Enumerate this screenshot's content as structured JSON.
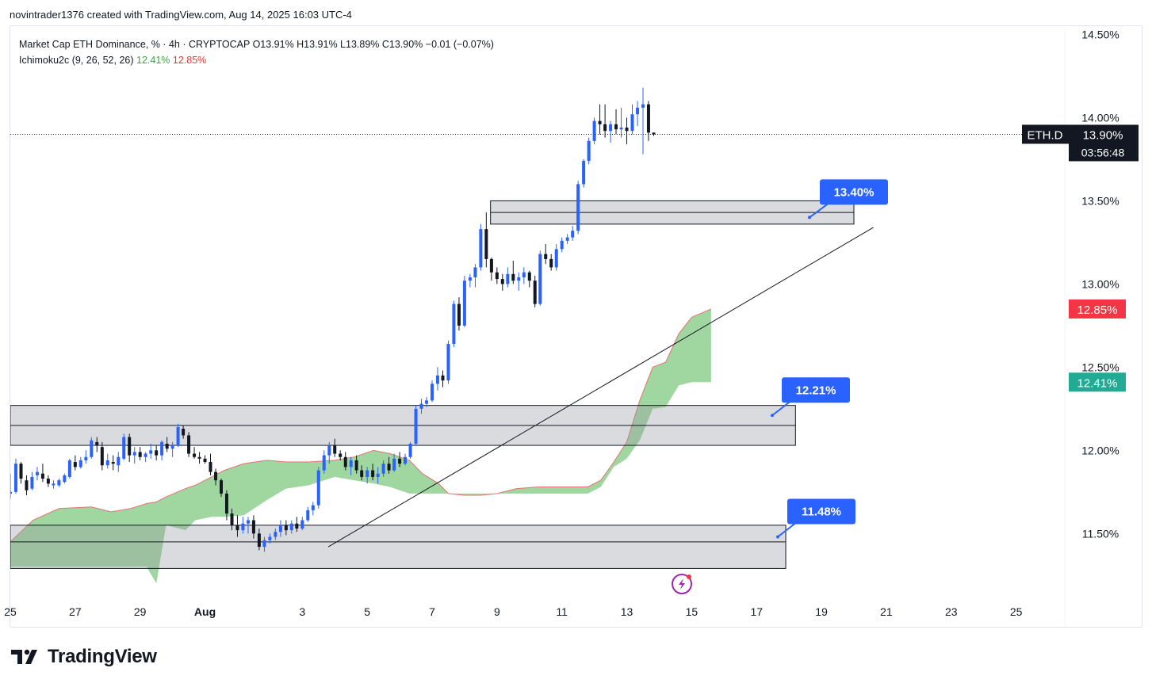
{
  "caption": "novintrader1376 created with TradingView.com, Aug 14, 2025 16:03 UTC-4",
  "legend": {
    "main": "Market Cap ETH Dominance, % · 4h · CRYPTOCAP",
    "ohlc": "O13.91% H13.91% L13.89% C13.90% −0.01 (−0.07%)",
    "indicator": "Ichimoku2c (9, 26, 52, 26)",
    "ind_val1": "12.41%",
    "ind_val2": "12.85%"
  },
  "brand": "TradingView",
  "colors": {
    "up": "#2962ff",
    "down": "#131722",
    "cloud": "#8fcf8f",
    "cloud_edge": "#e57373",
    "callout": "#2962ff",
    "label_red": "#f23645",
    "label_green": "#22ab94"
  },
  "chart_data": {
    "type": "candlestick",
    "symbol": "ETH.D",
    "interval": "4h",
    "ylim": [
      11.13,
      14.55
    ],
    "y_ticks": [
      "14.50%",
      "14.00%",
      "13.50%",
      "13.00%",
      "12.50%",
      "12.00%",
      "11.50%"
    ],
    "y_tick_values": [
      14.5,
      14.0,
      13.5,
      13.0,
      12.5,
      12.0,
      11.5
    ],
    "x_ticks": [
      "25",
      "27",
      "29",
      "Aug",
      "3",
      "5",
      "7",
      "9",
      "11",
      "13",
      "15",
      "17",
      "19",
      "21",
      "23",
      "25"
    ],
    "x_tick_days": [
      -7,
      -5,
      -3,
      -1,
      2,
      4,
      6,
      8,
      10,
      12,
      14,
      16,
      18,
      20,
      22,
      24
    ],
    "x_range_days": [
      -7,
      25.5
    ],
    "last_price": {
      "symbol": "ETH.D",
      "value": "13.90%",
      "countdown": "03:56:48",
      "price": 13.9
    },
    "ichimoku_labels": [
      {
        "text": "12.85%",
        "price": 12.85,
        "color": "red"
      },
      {
        "text": "12.41%",
        "price": 12.41,
        "color": "green"
      }
    ],
    "callouts": [
      {
        "text": "13.40%",
        "price": 13.4
      },
      {
        "text": "12.21%",
        "price": 12.21
      },
      {
        "text": "11.48%",
        "price": 11.48
      }
    ],
    "zones": [
      {
        "from_day": 7.8,
        "to_day": 19.0,
        "low": 13.36,
        "high": 13.5,
        "mid": 13.43
      },
      {
        "from_day": -7.0,
        "to_day": 17.2,
        "low": 12.03,
        "high": 12.27,
        "mid": 12.15
      },
      {
        "from_day": -7.0,
        "to_day": 16.9,
        "low": 11.29,
        "high": 11.55,
        "mid": 11.45
      }
    ],
    "trendline": {
      "from": [
        2.8,
        11.42
      ],
      "to": [
        19.6,
        13.34
      ]
    },
    "cloud": [
      [
        -7.0,
        11.45,
        11.3
      ],
      [
        -6.3,
        11.58,
        11.3
      ],
      [
        -5.5,
        11.65,
        11.3
      ],
      [
        -4.5,
        11.66,
        11.3
      ],
      [
        -3.9,
        11.63,
        11.3
      ],
      [
        -3.3,
        11.65,
        11.3
      ],
      [
        -2.8,
        11.68,
        11.3
      ],
      [
        -2.5,
        11.69,
        11.2
      ],
      [
        -2.2,
        11.72,
        11.55
      ],
      [
        -1.6,
        11.77,
        11.52
      ],
      [
        -1.3,
        11.79,
        11.58
      ],
      [
        -0.8,
        11.84,
        11.6
      ],
      [
        -0.4,
        11.88,
        11.6
      ],
      [
        0.2,
        11.92,
        11.61
      ],
      [
        0.9,
        11.94,
        11.7
      ],
      [
        1.5,
        11.93,
        11.77
      ],
      [
        2.2,
        11.93,
        11.79
      ],
      [
        3.0,
        11.94,
        11.84
      ],
      [
        3.6,
        11.96,
        11.82
      ],
      [
        4.2,
        12.0,
        11.8
      ],
      [
        4.7,
        11.98,
        11.78
      ],
      [
        5.3,
        11.94,
        11.74
      ],
      [
        5.7,
        11.86,
        11.74
      ],
      [
        6.2,
        11.8,
        11.74
      ],
      [
        6.5,
        11.74,
        11.74
      ],
      [
        7.0,
        11.73,
        11.74
      ],
      [
        7.5,
        11.73,
        11.74
      ],
      [
        8.0,
        11.74,
        11.74
      ],
      [
        8.6,
        11.77,
        11.74
      ],
      [
        9.3,
        11.78,
        11.74
      ],
      [
        10.2,
        11.78,
        11.74
      ],
      [
        10.8,
        11.78,
        11.74
      ],
      [
        11.2,
        11.82,
        11.78
      ],
      [
        11.6,
        11.93,
        11.9
      ],
      [
        12.0,
        12.05,
        11.95
      ],
      [
        12.4,
        12.3,
        12.06
      ],
      [
        12.8,
        12.5,
        12.25
      ],
      [
        13.2,
        12.53,
        12.26
      ],
      [
        13.6,
        12.7,
        12.39
      ],
      [
        14.0,
        12.8,
        12.41
      ],
      [
        14.6,
        12.85,
        12.41
      ]
    ],
    "candles": [
      [
        -7.0,
        11.74,
        11.86,
        11.71,
        11.75
      ],
      [
        -6.83,
        11.75,
        11.95,
        11.74,
        11.92
      ],
      [
        -6.67,
        11.92,
        11.93,
        11.8,
        11.83
      ],
      [
        -6.5,
        11.82,
        11.85,
        11.73,
        11.76
      ],
      [
        -6.33,
        11.77,
        11.87,
        11.76,
        11.84
      ],
      [
        -6.17,
        11.85,
        11.9,
        11.82,
        11.87
      ],
      [
        -6.0,
        11.86,
        11.92,
        11.81,
        11.83
      ],
      [
        -5.83,
        11.83,
        11.85,
        11.78,
        11.8
      ],
      [
        -5.67,
        11.79,
        11.82,
        11.77,
        11.8
      ],
      [
        -5.5,
        11.79,
        11.83,
        11.78,
        11.82
      ],
      [
        -5.33,
        11.81,
        11.86,
        11.8,
        11.85
      ],
      [
        -5.17,
        11.84,
        11.95,
        11.83,
        11.94
      ],
      [
        -5.0,
        11.93,
        11.97,
        11.88,
        11.9
      ],
      [
        -4.83,
        11.9,
        11.96,
        11.89,
        11.94
      ],
      [
        -4.67,
        11.94,
        12.0,
        11.92,
        11.96
      ],
      [
        -4.5,
        11.96,
        12.08,
        11.95,
        12.06
      ],
      [
        -4.33,
        12.05,
        12.08,
        11.99,
        12.03
      ],
      [
        -4.17,
        12.02,
        12.05,
        11.88,
        11.91
      ],
      [
        -4.0,
        11.91,
        11.98,
        11.89,
        11.94
      ],
      [
        -3.83,
        11.93,
        11.97,
        11.88,
        11.92
      ],
      [
        -3.67,
        11.91,
        11.99,
        11.87,
        11.96
      ],
      [
        -3.5,
        11.95,
        12.1,
        11.94,
        12.08
      ],
      [
        -3.33,
        12.08,
        12.1,
        11.93,
        11.97
      ],
      [
        -3.17,
        11.97,
        12.02,
        11.92,
        11.99
      ],
      [
        -3.0,
        11.99,
        12.02,
        11.94,
        11.96
      ],
      [
        -2.83,
        11.96,
        11.99,
        11.93,
        11.98
      ],
      [
        -2.67,
        11.98,
        12.04,
        11.95,
        12.0
      ],
      [
        -2.5,
        12.0,
        12.03,
        11.94,
        11.97
      ],
      [
        -2.33,
        11.97,
        12.06,
        11.94,
        12.05
      ],
      [
        -2.17,
        12.04,
        12.08,
        11.99,
        12.01
      ],
      [
        -2.0,
        12.01,
        12.05,
        11.96,
        12.03
      ],
      [
        -1.83,
        12.03,
        12.16,
        12.02,
        12.14
      ],
      [
        -1.67,
        12.13,
        12.15,
        12.07,
        12.09
      ],
      [
        -1.5,
        12.09,
        12.11,
        11.96,
        11.98
      ],
      [
        -1.33,
        11.98,
        12.02,
        11.95,
        11.96
      ],
      [
        -1.17,
        11.96,
        11.99,
        11.92,
        11.95
      ],
      [
        -1.0,
        11.95,
        11.97,
        11.92,
        11.93
      ],
      [
        -0.83,
        11.93,
        11.98,
        11.85,
        11.87
      ],
      [
        -0.67,
        11.87,
        11.89,
        11.79,
        11.82
      ],
      [
        -0.5,
        11.82,
        11.83,
        11.72,
        11.74
      ],
      [
        -0.33,
        11.74,
        11.76,
        11.58,
        11.62
      ],
      [
        -0.17,
        11.62,
        11.65,
        11.52,
        11.55
      ],
      [
        0.0,
        11.55,
        11.61,
        11.48,
        11.52
      ],
      [
        0.17,
        11.52,
        11.6,
        11.5,
        11.56
      ],
      [
        0.33,
        11.56,
        11.6,
        11.5,
        11.58
      ],
      [
        0.5,
        11.58,
        11.61,
        11.47,
        11.5
      ],
      [
        0.67,
        11.5,
        11.53,
        11.4,
        11.42
      ],
      [
        0.83,
        11.42,
        11.48,
        11.39,
        11.46
      ],
      [
        1.0,
        11.46,
        11.5,
        11.44,
        11.48
      ],
      [
        1.17,
        11.48,
        11.53,
        11.46,
        11.51
      ],
      [
        1.33,
        11.51,
        11.58,
        11.48,
        11.55
      ],
      [
        1.5,
        11.55,
        11.58,
        11.49,
        11.52
      ],
      [
        1.67,
        11.52,
        11.58,
        11.5,
        11.56
      ],
      [
        1.83,
        11.56,
        11.6,
        11.51,
        11.53
      ],
      [
        2.0,
        11.53,
        11.6,
        11.52,
        11.58
      ],
      [
        2.17,
        11.58,
        11.66,
        11.57,
        11.64
      ],
      [
        2.33,
        11.64,
        11.69,
        11.61,
        11.67
      ],
      [
        2.5,
        11.67,
        11.9,
        11.65,
        11.88
      ],
      [
        2.67,
        11.88,
        12.0,
        11.86,
        11.97
      ],
      [
        2.83,
        11.97,
        12.05,
        11.92,
        12.03
      ],
      [
        3.0,
        12.03,
        12.07,
        11.96,
        11.98
      ],
      [
        3.17,
        11.98,
        12.0,
        11.94,
        11.96
      ],
      [
        3.33,
        11.96,
        11.99,
        11.88,
        11.9
      ],
      [
        3.5,
        11.9,
        11.96,
        11.85,
        11.94
      ],
      [
        3.67,
        11.94,
        11.97,
        11.86,
        11.88
      ],
      [
        3.83,
        11.88,
        11.91,
        11.82,
        11.84
      ],
      [
        4.0,
        11.84,
        11.9,
        11.8,
        11.88
      ],
      [
        4.17,
        11.88,
        11.92,
        11.82,
        11.84
      ],
      [
        4.33,
        11.84,
        11.9,
        11.8,
        11.86
      ],
      [
        4.5,
        11.86,
        11.94,
        11.84,
        11.92
      ],
      [
        4.67,
        11.92,
        11.96,
        11.86,
        11.88
      ],
      [
        4.83,
        11.88,
        11.98,
        11.87,
        11.95
      ],
      [
        5.0,
        11.95,
        11.99,
        11.9,
        11.92
      ],
      [
        5.17,
        11.92,
        11.98,
        11.91,
        11.96
      ],
      [
        5.33,
        11.96,
        12.05,
        11.95,
        12.04
      ],
      [
        5.5,
        12.04,
        12.27,
        12.03,
        12.25
      ],
      [
        5.67,
        12.25,
        12.31,
        12.22,
        12.28
      ],
      [
        5.83,
        12.28,
        12.32,
        12.26,
        12.3
      ],
      [
        6.0,
        12.3,
        12.42,
        12.29,
        12.4
      ],
      [
        6.17,
        12.4,
        12.5,
        12.36,
        12.45
      ],
      [
        6.33,
        12.45,
        12.48,
        12.38,
        12.42
      ],
      [
        6.5,
        12.42,
        12.66,
        12.4,
        12.64
      ],
      [
        6.67,
        12.64,
        12.9,
        12.62,
        12.88
      ],
      [
        6.83,
        12.88,
        12.92,
        12.72,
        12.75
      ],
      [
        7.0,
        12.75,
        13.05,
        12.74,
        13.02
      ],
      [
        7.17,
        13.02,
        13.06,
        12.98,
        13.04
      ],
      [
        7.33,
        13.04,
        13.12,
        12.98,
        13.1
      ],
      [
        7.5,
        13.1,
        13.36,
        13.08,
        13.33
      ],
      [
        7.67,
        13.33,
        13.43,
        13.1,
        13.15
      ],
      [
        7.83,
        13.15,
        13.16,
        13.02,
        13.07
      ],
      [
        8.0,
        13.07,
        13.1,
        13.0,
        13.03
      ],
      [
        8.17,
        13.03,
        13.06,
        12.96,
        13.0
      ],
      [
        8.33,
        13.0,
        13.1,
        12.98,
        13.06
      ],
      [
        8.5,
        13.06,
        13.14,
        13.0,
        13.02
      ],
      [
        8.67,
        13.02,
        13.07,
        12.96,
        13.04
      ],
      [
        8.83,
        13.04,
        13.1,
        13.0,
        13.07
      ],
      [
        9.0,
        13.07,
        13.08,
        12.98,
        13.02
      ],
      [
        9.17,
        13.02,
        13.05,
        12.86,
        12.88
      ],
      [
        9.33,
        12.88,
        13.2,
        12.87,
        13.18
      ],
      [
        9.5,
        13.18,
        13.24,
        13.12,
        13.15
      ],
      [
        9.67,
        13.15,
        13.18,
        13.08,
        13.1
      ],
      [
        9.83,
        13.1,
        13.24,
        13.08,
        13.21
      ],
      [
        10.0,
        13.21,
        13.28,
        13.19,
        13.26
      ],
      [
        10.17,
        13.26,
        13.3,
        13.24,
        13.28
      ],
      [
        10.33,
        13.28,
        13.35,
        13.26,
        13.32
      ],
      [
        10.5,
        13.32,
        13.62,
        13.3,
        13.6
      ],
      [
        10.67,
        13.6,
        13.75,
        13.58,
        13.74
      ],
      [
        10.83,
        13.74,
        13.88,
        13.72,
        13.86
      ],
      [
        11.0,
        13.86,
        14.0,
        13.84,
        13.98
      ],
      [
        11.17,
        13.98,
        14.08,
        13.9,
        13.96
      ],
      [
        11.33,
        13.96,
        14.08,
        13.88,
        13.92
      ],
      [
        11.5,
        13.92,
        13.98,
        13.85,
        13.96
      ],
      [
        11.67,
        13.96,
        14.05,
        13.9,
        13.93
      ],
      [
        11.83,
        13.93,
        14.06,
        13.88,
        13.94
      ],
      [
        12.0,
        13.94,
        14.0,
        13.84,
        13.92
      ],
      [
        12.17,
        13.92,
        14.08,
        13.9,
        14.02
      ],
      [
        12.33,
        14.02,
        14.1,
        13.95,
        14.06
      ],
      [
        12.5,
        14.06,
        14.18,
        13.78,
        14.08
      ],
      [
        12.67,
        14.08,
        14.1,
        13.86,
        13.91
      ],
      [
        12.83,
        13.91,
        13.91,
        13.89,
        13.9
      ]
    ]
  }
}
